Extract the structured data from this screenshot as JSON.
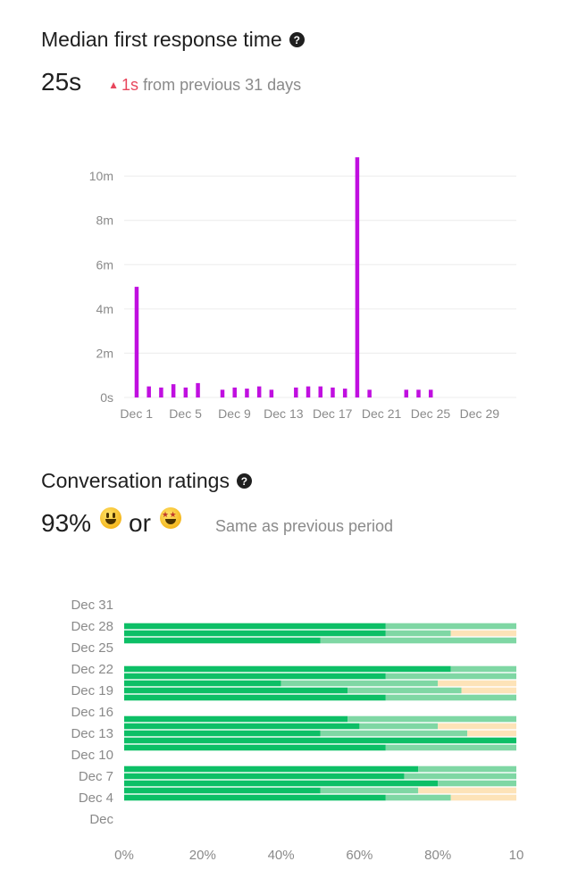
{
  "response": {
    "title": "Median first response time",
    "value": "25s",
    "delta_amount": "1s",
    "delta_text": "from previous 31 days"
  },
  "ratings": {
    "title": "Conversation ratings",
    "value": "93%",
    "or_text": "or",
    "emoji_icons": [
      "grinning-face-icon",
      "star-struck-face-icon"
    ],
    "comparison": "Same as previous period"
  },
  "colors": {
    "bar": "#c00fe0",
    "great": "#0dbf66",
    "good": "#7fd7a4",
    "ok": "#fde3b8",
    "grid": "#ececec",
    "axis_text": "#8a8a8a"
  },
  "chart_data": [
    {
      "type": "bar",
      "title": "Median first response time",
      "x_ticks": [
        "Dec 1",
        "Dec 5",
        "Dec 9",
        "Dec 13",
        "Dec 17",
        "Dec 21",
        "Dec 25",
        "Dec 29"
      ],
      "y_ticks": [
        "0s",
        "2m",
        "4m",
        "6m",
        "8m",
        "10m"
      ],
      "ylim": [
        0,
        11.5
      ],
      "y_unit": "minutes",
      "day_min": 0,
      "day_max": 32,
      "days": [
        1,
        2,
        3,
        4,
        5,
        6,
        8,
        9,
        10,
        11,
        12,
        14,
        15,
        16,
        17,
        18,
        19,
        20,
        23,
        24,
        25
      ],
      "values": [
        5.0,
        0.5,
        0.45,
        0.6,
        0.45,
        0.65,
        0.35,
        0.45,
        0.4,
        0.5,
        0.35,
        0.45,
        0.5,
        0.5,
        0.45,
        0.4,
        10.85,
        0.35,
        0.35,
        0.35,
        0.35
      ]
    },
    {
      "type": "bar",
      "orientation": "horizontal",
      "stacked": true,
      "title": "Conversation ratings",
      "y_ticks": [
        "Dec 31",
        "Dec 28",
        "Dec 25",
        "Dec 22",
        "Dec 19",
        "Dec 16",
        "Dec 13",
        "Dec 10",
        "Dec 7",
        "Dec 4",
        "Dec"
      ],
      "x_ticks": [
        "0%",
        "20%",
        "40%",
        "60%",
        "80%",
        "10"
      ],
      "xlim": [
        0,
        100
      ],
      "date_min": 1,
      "date_max": 31,
      "series_order": [
        "great",
        "good",
        "ok"
      ],
      "rows": [
        {
          "date": 28,
          "great": 66.7,
          "good": 33.3,
          "ok": 0
        },
        {
          "date": 27,
          "great": 66.7,
          "good": 16.6,
          "ok": 16.7
        },
        {
          "date": 26,
          "great": 50,
          "good": 50,
          "ok": 0
        },
        {
          "date": 22,
          "great": 83.3,
          "good": 16.7,
          "ok": 0
        },
        {
          "date": 21,
          "great": 66.7,
          "good": 33.3,
          "ok": 0
        },
        {
          "date": 20,
          "great": 40,
          "good": 40,
          "ok": 20
        },
        {
          "date": 19,
          "great": 57,
          "good": 29,
          "ok": 14
        },
        {
          "date": 18,
          "great": 66.7,
          "good": 33.3,
          "ok": 0
        },
        {
          "date": 15,
          "great": 57,
          "good": 43,
          "ok": 0
        },
        {
          "date": 14,
          "great": 60,
          "good": 20,
          "ok": 20
        },
        {
          "date": 13,
          "great": 50,
          "good": 37.5,
          "ok": 12.5
        },
        {
          "date": 12,
          "great": 100,
          "good": 0,
          "ok": 0
        },
        {
          "date": 11,
          "great": 66.7,
          "good": 33.3,
          "ok": 0
        },
        {
          "date": 8,
          "great": 75,
          "good": 25,
          "ok": 0
        },
        {
          "date": 7,
          "great": 71.4,
          "good": 28.6,
          "ok": 0
        },
        {
          "date": 6,
          "great": 80,
          "good": 20,
          "ok": 0
        },
        {
          "date": 5,
          "great": 50,
          "good": 25,
          "ok": 25
        },
        {
          "date": 4,
          "great": 66.7,
          "good": 16.6,
          "ok": 16.7
        }
      ]
    }
  ]
}
